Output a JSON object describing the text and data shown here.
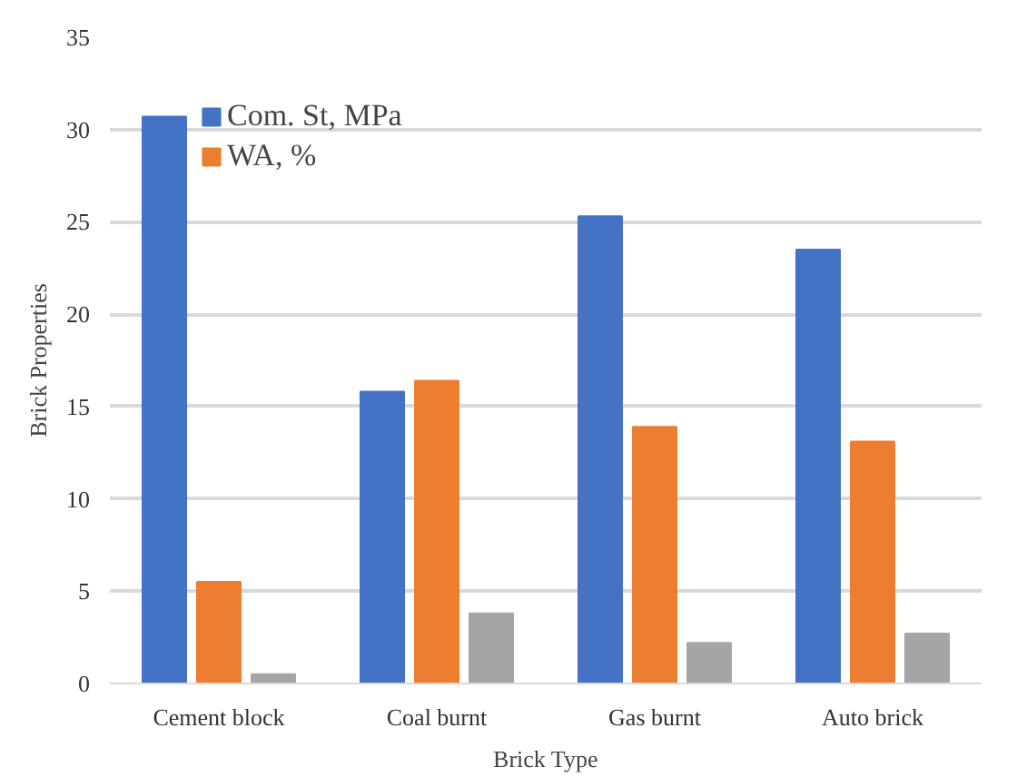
{
  "chart_data": {
    "type": "bar",
    "xlabel": "Brick Type",
    "ylabel": "Brick Properties",
    "categories": [
      "Cement block",
      "Coal burnt",
      "Gas burnt",
      "Auto brick"
    ],
    "series": [
      {
        "name": "Com. St, MPa",
        "color": "#4472c4",
        "values": [
          30.7,
          15.8,
          25.3,
          23.5
        ]
      },
      {
        "name": "WA, %",
        "color": "#ed7d31",
        "values": [
          5.5,
          16.4,
          13.9,
          13.1
        ]
      },
      {
        "color": "#a5a5a5",
        "values": [
          0.5,
          3.8,
          2.2,
          2.7
        ]
      }
    ],
    "ylim": [
      0,
      35
    ],
    "yticks": [
      0,
      5,
      10,
      15,
      20,
      25,
      30,
      35
    ],
    "grid": "y",
    "legend": "top left"
  }
}
